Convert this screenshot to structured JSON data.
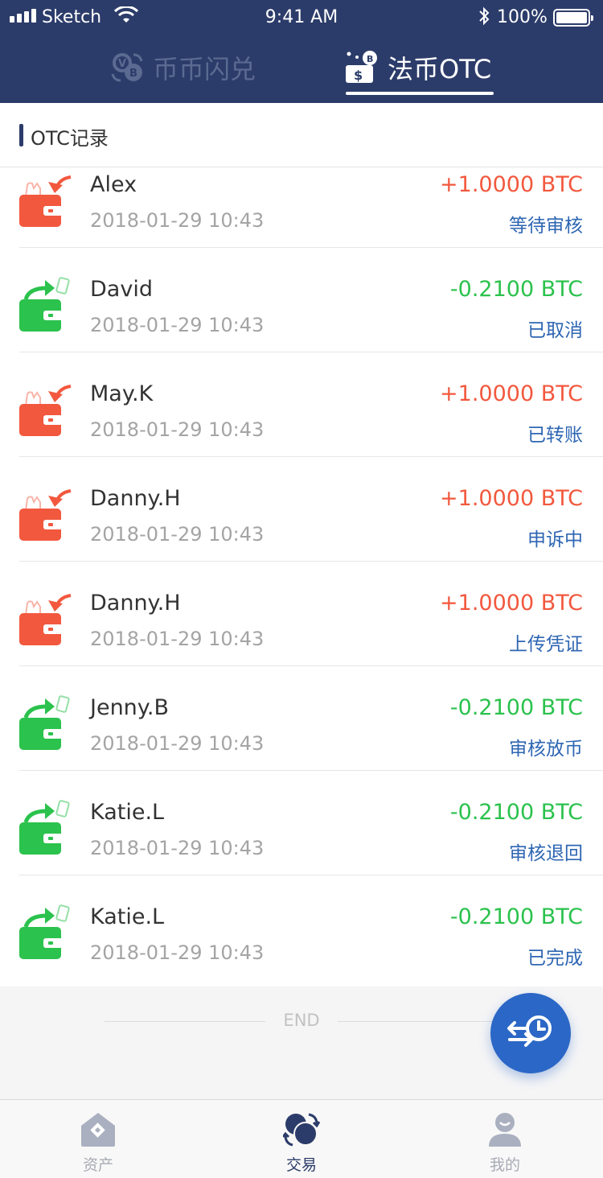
{
  "status_bar": {
    "carrier": "Sketch",
    "time": "9:41 AM",
    "battery": "100%"
  },
  "header": {
    "tabs": [
      {
        "label": "币币闪兑",
        "icon": "coin-swap-icon",
        "active": false
      },
      {
        "label": "法币OTC",
        "icon": "fiat-otc-icon",
        "active": true
      }
    ]
  },
  "section": {
    "title": "OTC记录"
  },
  "records": [
    {
      "name": "Alex",
      "date": "2018-01-29 10:43",
      "amount": "+1.0000 BTC",
      "status": "等待审核",
      "direction": "in"
    },
    {
      "name": "David",
      "date": "2018-01-29 10:43",
      "amount": "-0.2100 BTC",
      "status": "已取消",
      "direction": "out"
    },
    {
      "name": "May.K",
      "date": "2018-01-29 10:43",
      "amount": "+1.0000 BTC",
      "status": "已转账",
      "direction": "in"
    },
    {
      "name": "Danny.H",
      "date": "2018-01-29 10:43",
      "amount": "+1.0000 BTC",
      "status": "申诉中",
      "direction": "in"
    },
    {
      "name": "Danny.H",
      "date": "2018-01-29 10:43",
      "amount": "+1.0000 BTC",
      "status": "上传凭证",
      "direction": "in"
    },
    {
      "name": "Jenny.B",
      "date": "2018-01-29 10:43",
      "amount": "-0.2100 BTC",
      "status": "审核放币",
      "direction": "out"
    },
    {
      "name": "Katie.L",
      "date": "2018-01-29 10:43",
      "amount": "-0.2100 BTC",
      "status": "审核退回",
      "direction": "out"
    },
    {
      "name": "Katie.L",
      "date": "2018-01-29 10:43",
      "amount": "-0.2100 BTC",
      "status": "已完成",
      "direction": "out"
    }
  ],
  "list_end": "END",
  "fab": {
    "icon": "history-icon"
  },
  "bottom_nav": {
    "items": [
      {
        "label": "资产",
        "icon": "assets-icon",
        "active": false
      },
      {
        "label": "交易",
        "icon": "trade-icon",
        "active": true
      },
      {
        "label": "我的",
        "icon": "profile-icon",
        "active": false
      }
    ]
  },
  "colors": {
    "header_bg": "#2c3c6a",
    "income": "#f2583e",
    "outgo": "#2bc24d",
    "status_link": "#2e66b3",
    "fab": "#2b67c6"
  }
}
